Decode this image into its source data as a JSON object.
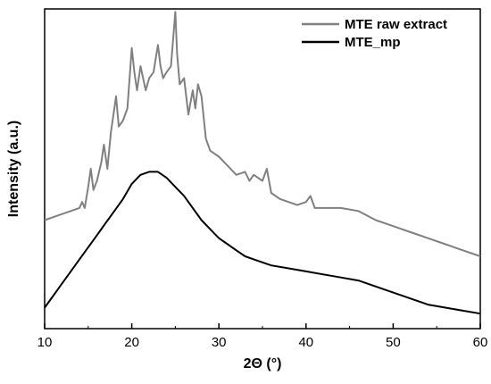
{
  "chart_data": {
    "type": "line",
    "xlabel": "2Θ (°)",
    "ylabel": "Intensity (a.u.)",
    "xlim": [
      10,
      60
    ],
    "ylim": [
      0,
      100
    ],
    "xticks": [
      "10",
      "20",
      "30",
      "40",
      "50",
      "60"
    ],
    "grid": false,
    "legend_position": "top-right",
    "y_ticks_labeled": false,
    "series": [
      {
        "name": "MTE raw extract",
        "color": "#808080",
        "x": [
          10,
          11,
          12,
          13,
          14,
          14.3,
          14.6,
          15,
          15.3,
          15.6,
          16,
          16.5,
          16.8,
          17.2,
          17.6,
          18,
          18.2,
          18.5,
          19,
          19.5,
          20,
          20.3,
          20.6,
          21,
          21.3,
          21.6,
          22,
          22.5,
          23,
          23.3,
          23.6,
          24,
          24.5,
          25,
          25.2,
          25.5,
          26,
          26.5,
          27,
          27.3,
          27.6,
          28,
          28.5,
          29,
          30,
          31,
          32,
          33,
          33.5,
          34,
          35,
          35.5,
          36,
          37,
          38,
          39,
          40,
          40.5,
          41,
          42,
          44,
          46,
          48,
          50,
          52,
          54,
          56,
          58,
          60
        ],
        "y": [
          33,
          34,
          35,
          36,
          37,
          39,
          37,
          44,
          50,
          43,
          46,
          52,
          58,
          50,
          62,
          70,
          74,
          64,
          66,
          70,
          90,
          82,
          76,
          84,
          80,
          76,
          80,
          82,
          91,
          84,
          80,
          82,
          84,
          102,
          88,
          78,
          80,
          68,
          76,
          70,
          78,
          74,
          60,
          56,
          54,
          51,
          48,
          49,
          46,
          48,
          46,
          50,
          42,
          40,
          39,
          38,
          39,
          41,
          37,
          37,
          37,
          36,
          33,
          31,
          29,
          27,
          25,
          23,
          21
        ]
      },
      {
        "name": "MTE_mp",
        "color": "#000000",
        "x": [
          10,
          11,
          12,
          13,
          14,
          15,
          16,
          17,
          18,
          19,
          20,
          21,
          22,
          23,
          24,
          25,
          26,
          27,
          28,
          29,
          30,
          31,
          32,
          33,
          34,
          35,
          36,
          38,
          40,
          42,
          44,
          46,
          48,
          50,
          52,
          54,
          56,
          58,
          60
        ],
        "y": [
          4,
          8,
          12,
          16,
          20,
          24,
          28,
          32,
          36,
          40,
          45,
          48,
          49,
          49,
          47,
          44,
          41,
          37,
          33,
          30,
          27,
          25,
          23,
          21,
          20,
          19,
          18,
          17,
          16,
          15,
          14,
          13,
          11,
          9,
          7,
          5,
          4,
          3,
          2
        ]
      }
    ]
  }
}
